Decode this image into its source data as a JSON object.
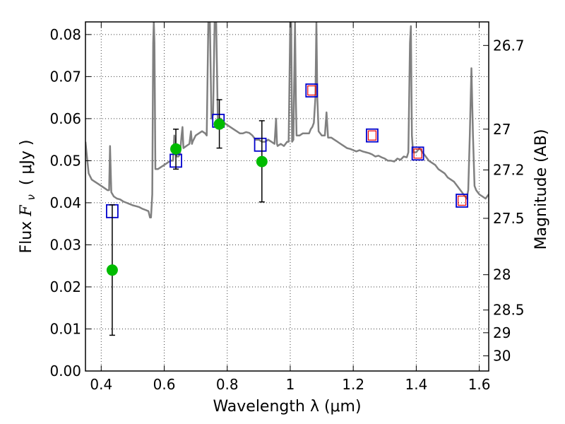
{
  "chart_data": {
    "type": "scatter",
    "title": "",
    "xlabel": "Wavelength  λ (μm)",
    "ylabel_left": "Flux  F_ν ( μJy )",
    "ylabel_left_parts": {
      "prefix": "Flux ",
      "symbol": "F",
      "subscript": "ν",
      "unit": "( μJy )"
    },
    "ylabel_right": "Magnitude (AB)",
    "xlim": [
      0.35,
      1.63
    ],
    "ylim": [
      0,
      0.083
    ],
    "grid": true,
    "x_ticks": [
      {
        "value": 0.4,
        "label": "0.4"
      },
      {
        "value": 0.6,
        "label": "0.6"
      },
      {
        "value": 0.8,
        "label": "0.8"
      },
      {
        "value": 1.0,
        "label": "1"
      },
      {
        "value": 1.2,
        "label": "1.2"
      },
      {
        "value": 1.4,
        "label": "1.4"
      },
      {
        "value": 1.6,
        "label": "1.6"
      }
    ],
    "y_ticks": [
      {
        "value": 0.0,
        "label": "0.00"
      },
      {
        "value": 0.01,
        "label": "0.01"
      },
      {
        "value": 0.02,
        "label": "0.02"
      },
      {
        "value": 0.03,
        "label": "0.03"
      },
      {
        "value": 0.04,
        "label": "0.04"
      },
      {
        "value": 0.05,
        "label": "0.05"
      },
      {
        "value": 0.06,
        "label": "0.06"
      },
      {
        "value": 0.07,
        "label": "0.07"
      },
      {
        "value": 0.08,
        "label": "0.08"
      }
    ],
    "mag_ticks": [
      {
        "label": "26.7",
        "flux": 0.0774
      },
      {
        "label": "27",
        "flux": 0.0575
      },
      {
        "label": "27.2",
        "flux": 0.0478
      },
      {
        "label": "27.5",
        "flux": 0.0363
      },
      {
        "label": "28",
        "flux": 0.0229
      },
      {
        "label": "28.5",
        "flux": 0.0145
      },
      {
        "label": "29",
        "flux": 0.0091
      },
      {
        "label": "30",
        "flux": 0.0036
      }
    ],
    "series": [
      {
        "kind": "model_sed",
        "color": "#808080",
        "points": [
          [
            0.35,
            0.0545
          ],
          [
            0.36,
            0.047
          ],
          [
            0.37,
            0.0455
          ],
          [
            0.38,
            0.045
          ],
          [
            0.39,
            0.0445
          ],
          [
            0.4,
            0.044
          ],
          [
            0.41,
            0.0435
          ],
          [
            0.42,
            0.043
          ],
          [
            0.425,
            0.043
          ],
          [
            0.428,
            0.0535
          ],
          [
            0.432,
            0.0425
          ],
          [
            0.44,
            0.0415
          ],
          [
            0.45,
            0.041
          ],
          [
            0.46,
            0.0408
          ],
          [
            0.47,
            0.0403
          ],
          [
            0.48,
            0.04
          ],
          [
            0.49,
            0.0397
          ],
          [
            0.5,
            0.0394
          ],
          [
            0.51,
            0.0392
          ],
          [
            0.52,
            0.039
          ],
          [
            0.53,
            0.0386
          ],
          [
            0.54,
            0.0383
          ],
          [
            0.55,
            0.038
          ],
          [
            0.555,
            0.0365
          ],
          [
            0.558,
            0.0365
          ],
          [
            0.562,
            0.042
          ],
          [
            0.565,
            0.078
          ],
          [
            0.567,
            0.083
          ],
          [
            0.569,
            0.078
          ],
          [
            0.572,
            0.048
          ],
          [
            0.58,
            0.048
          ],
          [
            0.59,
            0.0485
          ],
          [
            0.6,
            0.049
          ],
          [
            0.61,
            0.0495
          ],
          [
            0.62,
            0.05
          ],
          [
            0.628,
            0.05
          ],
          [
            0.632,
            0.056
          ],
          [
            0.636,
            0.052
          ],
          [
            0.64,
            0.051
          ],
          [
            0.645,
            0.051
          ],
          [
            0.65,
            0.0515
          ],
          [
            0.655,
            0.056
          ],
          [
            0.658,
            0.058
          ],
          [
            0.661,
            0.053
          ],
          [
            0.67,
            0.0535
          ],
          [
            0.68,
            0.054
          ],
          [
            0.685,
            0.057
          ],
          [
            0.688,
            0.054
          ],
          [
            0.69,
            0.0545
          ],
          [
            0.7,
            0.056
          ],
          [
            0.71,
            0.0565
          ],
          [
            0.72,
            0.057
          ],
          [
            0.73,
            0.0565
          ],
          [
            0.735,
            0.056
          ],
          [
            0.74,
            0.083
          ],
          [
            0.745,
            0.083
          ],
          [
            0.75,
            0.06
          ],
          [
            0.755,
            0.061
          ],
          [
            0.76,
            0.083
          ],
          [
            0.765,
            0.083
          ],
          [
            0.77,
            0.06
          ],
          [
            0.78,
            0.06
          ],
          [
            0.79,
            0.059
          ],
          [
            0.8,
            0.0585
          ],
          [
            0.81,
            0.058
          ],
          [
            0.82,
            0.0575
          ],
          [
            0.83,
            0.057
          ],
          [
            0.84,
            0.0565
          ],
          [
            0.85,
            0.0565
          ],
          [
            0.86,
            0.0568
          ],
          [
            0.87,
            0.0566
          ],
          [
            0.88,
            0.056
          ],
          [
            0.89,
            0.055
          ],
          [
            0.9,
            0.055
          ],
          [
            0.91,
            0.0545
          ],
          [
            0.92,
            0.0545
          ],
          [
            0.93,
            0.055
          ],
          [
            0.94,
            0.0545
          ],
          [
            0.95,
            0.054
          ],
          [
            0.955,
            0.06
          ],
          [
            0.958,
            0.054
          ],
          [
            0.96,
            0.0535
          ],
          [
            0.97,
            0.054
          ],
          [
            0.98,
            0.0535
          ],
          [
            0.99,
            0.0545
          ],
          [
            0.995,
            0.0545
          ],
          [
            1.0,
            0.083
          ],
          [
            1.003,
            0.083
          ],
          [
            1.006,
            0.0545
          ],
          [
            1.01,
            0.055
          ],
          [
            1.015,
            0.083
          ],
          [
            1.018,
            0.064
          ],
          [
            1.02,
            0.056
          ],
          [
            1.03,
            0.056
          ],
          [
            1.04,
            0.0565
          ],
          [
            1.05,
            0.0565
          ],
          [
            1.06,
            0.0565
          ],
          [
            1.065,
            0.0575
          ],
          [
            1.07,
            0.058
          ],
          [
            1.075,
            0.059
          ],
          [
            1.08,
            0.065
          ],
          [
            1.083,
            0.083
          ],
          [
            1.086,
            0.065
          ],
          [
            1.09,
            0.057
          ],
          [
            1.1,
            0.056
          ],
          [
            1.11,
            0.056
          ],
          [
            1.115,
            0.0615
          ],
          [
            1.12,
            0.0555
          ],
          [
            1.13,
            0.0555
          ],
          [
            1.14,
            0.055
          ],
          [
            1.15,
            0.0545
          ],
          [
            1.16,
            0.054
          ],
          [
            1.17,
            0.0535
          ],
          [
            1.18,
            0.053
          ],
          [
            1.19,
            0.0528
          ],
          [
            1.2,
            0.0525
          ],
          [
            1.21,
            0.0522
          ],
          [
            1.22,
            0.0525
          ],
          [
            1.23,
            0.0522
          ],
          [
            1.24,
            0.052
          ],
          [
            1.25,
            0.0518
          ],
          [
            1.26,
            0.0515
          ],
          [
            1.27,
            0.051
          ],
          [
            1.28,
            0.0512
          ],
          [
            1.29,
            0.0508
          ],
          [
            1.3,
            0.0505
          ],
          [
            1.31,
            0.05
          ],
          [
            1.32,
            0.05
          ],
          [
            1.33,
            0.0498
          ],
          [
            1.34,
            0.0505
          ],
          [
            1.35,
            0.0502
          ],
          [
            1.36,
            0.051
          ],
          [
            1.37,
            0.0508
          ],
          [
            1.375,
            0.052
          ],
          [
            1.38,
            0.078
          ],
          [
            1.383,
            0.082
          ],
          [
            1.386,
            0.056
          ],
          [
            1.39,
            0.052
          ],
          [
            1.4,
            0.052
          ],
          [
            1.41,
            0.053
          ],
          [
            1.42,
            0.052
          ],
          [
            1.43,
            0.051
          ],
          [
            1.44,
            0.05
          ],
          [
            1.45,
            0.0495
          ],
          [
            1.46,
            0.049
          ],
          [
            1.47,
            0.048
          ],
          [
            1.48,
            0.0475
          ],
          [
            1.49,
            0.047
          ],
          [
            1.5,
            0.046
          ],
          [
            1.51,
            0.0455
          ],
          [
            1.52,
            0.045
          ],
          [
            1.53,
            0.044
          ],
          [
            1.54,
            0.043
          ],
          [
            1.55,
            0.042
          ],
          [
            1.56,
            0.041
          ],
          [
            1.565,
            0.043
          ],
          [
            1.57,
            0.056
          ],
          [
            1.575,
            0.072
          ],
          [
            1.58,
            0.056
          ],
          [
            1.585,
            0.044
          ],
          [
            1.59,
            0.043
          ],
          [
            1.6,
            0.042
          ],
          [
            1.61,
            0.0415
          ],
          [
            1.62,
            0.041
          ],
          [
            1.63,
            0.042
          ]
        ]
      },
      {
        "kind": "model_photometry",
        "marker": "square",
        "color": "#0000cc",
        "points": [
          [
            0.435,
            0.038
          ],
          [
            0.637,
            0.05
          ],
          [
            0.772,
            0.0595
          ],
          [
            0.905,
            0.0538
          ],
          [
            1.068,
            0.0667
          ],
          [
            1.26,
            0.056
          ],
          [
            1.405,
            0.0517
          ],
          [
            1.545,
            0.0405
          ]
        ]
      },
      {
        "kind": "model_photometry_inner",
        "marker": "square",
        "color": "#ee0000",
        "points": [
          [
            1.068,
            0.0667
          ],
          [
            1.26,
            0.056
          ],
          [
            1.405,
            0.0517
          ],
          [
            1.545,
            0.0405
          ]
        ]
      },
      {
        "kind": "observed",
        "marker": "circle",
        "color": "#00bb00",
        "points": [
          {
            "x": 0.435,
            "y": 0.024,
            "ylo": 0.0085,
            "yhi": 0.0395
          },
          {
            "x": 0.637,
            "y": 0.0528,
            "ylo": 0.048,
            "yhi": 0.0575
          },
          {
            "x": 0.775,
            "y": 0.0587,
            "ylo": 0.053,
            "yhi": 0.0645
          },
          {
            "x": 0.91,
            "y": 0.0498,
            "ylo": 0.0402,
            "yhi": 0.0595
          }
        ]
      }
    ]
  }
}
